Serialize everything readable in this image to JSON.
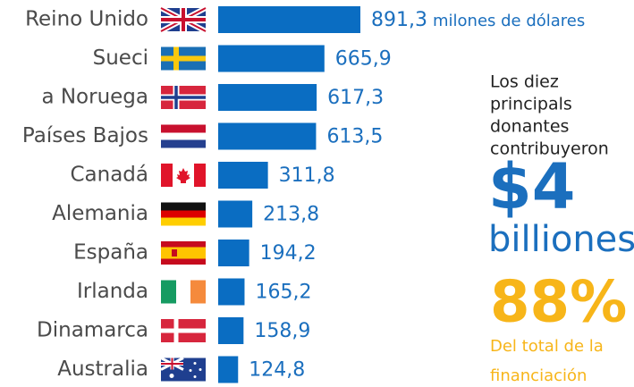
{
  "chart_data": {
    "type": "bar",
    "orientation": "horizontal",
    "color": "#0a6dc2",
    "categories": [
      "Reino Unido",
      "Sueci",
      "a Noruega",
      "Países Bajos",
      "Canadá",
      "Alemania",
      "España",
      "Irlanda",
      "Dinamarca",
      "Australia"
    ],
    "values": [
      891.3,
      665.9,
      617.3,
      613.5,
      311.8,
      213.8,
      194.2,
      165.2,
      158.9,
      124.8
    ],
    "value_labels": [
      "891,3",
      "665,9",
      "617,3",
      "613,5",
      "311,8",
      "213,8",
      "194,2",
      "165,2",
      "158,9",
      "124,8"
    ],
    "unit": "milones de dólares",
    "summary": {
      "lines": [
        "Los diez",
        "principals",
        "donantes",
        "contribuyeron"
      ],
      "amount": "$4",
      "amount_unit": "billiones",
      "share": "88%",
      "share_lines": [
        "Del total de la",
        "financiación"
      ]
    }
  }
}
